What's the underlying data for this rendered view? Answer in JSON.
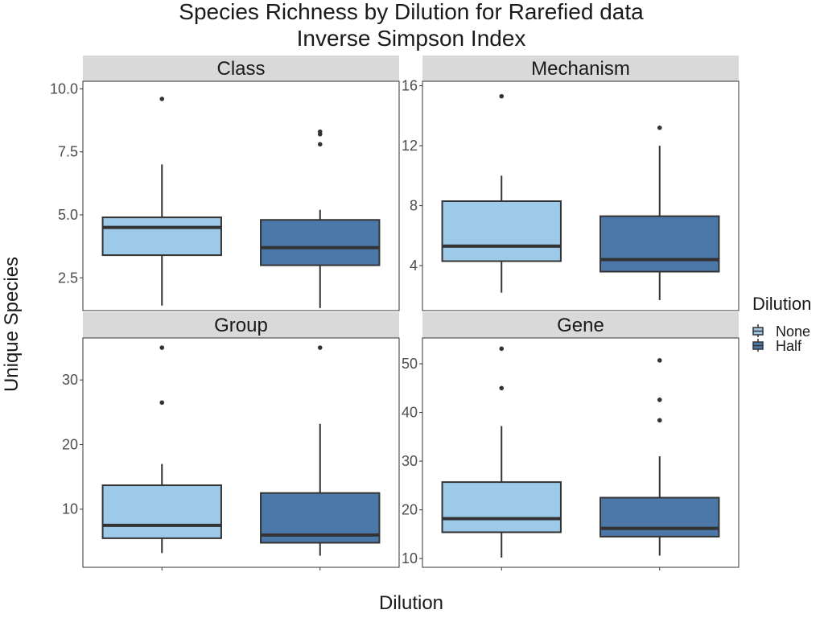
{
  "chart_data": {
    "type": "boxplot",
    "title": "Species Richness by Dilution for Rarefied data",
    "subtitle": "Inverse Simpson Index",
    "xlabel": "Dilution",
    "ylabel": "Unique Species",
    "legend": {
      "title": "Dilution",
      "placement": "right",
      "entries": [
        {
          "name": "None",
          "color": "#9ecae9"
        },
        {
          "name": "Half",
          "color": "#4b78a8"
        }
      ]
    },
    "categories": [
      "None",
      "Half"
    ],
    "facets": [
      {
        "name": "Class",
        "ylim": [
          1.2,
          10.3
        ],
        "yticks": [
          2.5,
          5.0,
          7.5,
          10.0
        ],
        "ytick_labels": [
          "2.5",
          "5.0",
          "7.5",
          "10.0"
        ],
        "boxes": [
          {
            "group": "None",
            "min": 1.4,
            "q1": 3.4,
            "median": 4.5,
            "q3": 4.9,
            "max": 7.0,
            "outliers": [
              9.6
            ]
          },
          {
            "group": "Half",
            "min": 1.3,
            "q1": 3.0,
            "median": 3.7,
            "q3": 4.8,
            "max": 5.2,
            "outliers": [
              8.3,
              8.2,
              7.8
            ]
          }
        ]
      },
      {
        "name": "Mechanism",
        "ylim": [
          1.0,
          16.3
        ],
        "yticks": [
          4,
          8,
          12,
          16
        ],
        "ytick_labels": [
          "4",
          "8",
          "12",
          "16"
        ],
        "boxes": [
          {
            "group": "None",
            "min": 2.2,
            "q1": 4.3,
            "median": 5.3,
            "q3": 8.3,
            "max": 10.0,
            "outliers": [
              15.3
            ]
          },
          {
            "group": "Half",
            "min": 1.7,
            "q1": 3.6,
            "median": 4.4,
            "q3": 7.3,
            "max": 12.0,
            "outliers": [
              13.2
            ]
          }
        ]
      },
      {
        "name": "Group",
        "ylim": [
          1.0,
          36.5
        ],
        "yticks": [
          10,
          20,
          30
        ],
        "ytick_labels": [
          "10",
          "20",
          "30"
        ],
        "boxes": [
          {
            "group": "None",
            "min": 3.2,
            "q1": 5.5,
            "median": 7.5,
            "q3": 13.7,
            "max": 17.0,
            "outliers": [
              35.0,
              26.5
            ]
          },
          {
            "group": "Half",
            "min": 2.8,
            "q1": 4.8,
            "median": 6.0,
            "q3": 12.5,
            "max": 23.2,
            "outliers": [
              35.0
            ]
          }
        ]
      },
      {
        "name": "Gene",
        "ylim": [
          8.2,
          55.3
        ],
        "yticks": [
          10,
          20,
          30,
          40,
          50
        ],
        "ytick_labels": [
          "10",
          "20",
          "30",
          "40",
          "50"
        ],
        "boxes": [
          {
            "group": "None",
            "min": 10.2,
            "q1": 15.4,
            "median": 18.2,
            "q3": 25.7,
            "max": 37.2,
            "outliers": [
              53.1,
              45.0
            ]
          },
          {
            "group": "Half",
            "min": 10.6,
            "q1": 14.5,
            "median": 16.2,
            "q3": 22.5,
            "max": 31.0,
            "outliers": [
              50.7,
              42.6,
              38.4
            ]
          }
        ]
      }
    ]
  }
}
